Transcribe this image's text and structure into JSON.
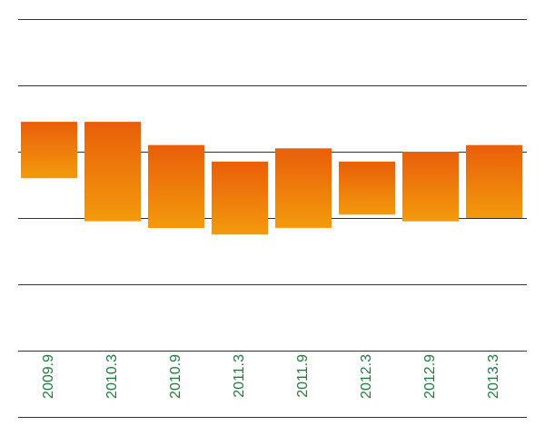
{
  "chart_data": {
    "type": "bar",
    "subtype": "floating-range",
    "title": "",
    "xlabel": "",
    "ylabel": "",
    "categories": [
      "2009.9",
      "2010.3",
      "2010.9",
      "2011.3",
      "2011.9",
      "2012.3",
      "2012.9",
      "2013.3"
    ],
    "ranges": [
      [
        2.6,
        3.45
      ],
      [
        1.95,
        3.45
      ],
      [
        1.85,
        3.1
      ],
      [
        1.75,
        2.85
      ],
      [
        1.85,
        3.05
      ],
      [
        2.05,
        2.85
      ],
      [
        1.95,
        3.0
      ],
      [
        2.0,
        3.1
      ]
    ],
    "ylim": [
      0,
      5
    ],
    "grid": true,
    "colors": {
      "bar_top": "#E95E0A",
      "bar_bottom": "#F39A0C",
      "gridline": "#333333",
      "label": "#1F7A3D"
    }
  }
}
